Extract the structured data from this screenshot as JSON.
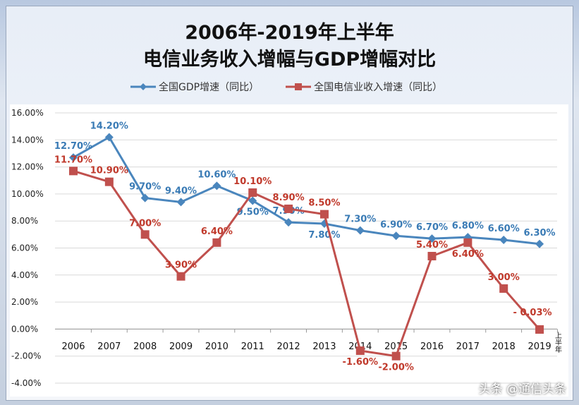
{
  "chart_data": {
    "type": "line",
    "title": "2006年-2019年上半年",
    "subtitle": "电信业务收入增幅与GDP增幅对比",
    "categories": [
      "2006",
      "2007",
      "2008",
      "2009",
      "2010",
      "2011",
      "2012",
      "2013",
      "2014",
      "2015",
      "2016",
      "2017",
      "2018",
      "2019"
    ],
    "category_note": "上半年",
    "yticks": [
      "16.00%",
      "14.00%",
      "12.00%",
      "10.00%",
      "8.00%",
      "6.00%",
      "4.00%",
      "2.00%",
      "0.00%",
      "-2.00%",
      "-4.00%"
    ],
    "ylim": [
      -4,
      16
    ],
    "grid": true,
    "legend": "top",
    "series": [
      {
        "name": "全国GDP增速（同比）",
        "color": "#4a86bd",
        "marker": "diamond",
        "values": [
          12.7,
          14.2,
          9.7,
          9.4,
          10.6,
          9.5,
          7.9,
          7.8,
          7.3,
          6.9,
          6.7,
          6.8,
          6.6,
          6.3
        ],
        "labels": [
          "12.70%",
          "14.20%",
          "9.70%",
          "9.40%",
          "10.60%",
          "9.50%",
          "7.90%",
          "7.80%",
          "7.30%",
          "6.90%",
          "6.70%",
          "6.80%",
          "6.60%",
          "6.30%"
        ]
      },
      {
        "name": "全国电信业收入增速（同比）",
        "color": "#c0504d",
        "marker": "square",
        "values": [
          11.7,
          10.9,
          7.0,
          3.9,
          6.4,
          10.1,
          8.9,
          8.5,
          -1.6,
          -2.0,
          5.4,
          6.4,
          3.0,
          -0.03
        ],
        "labels": [
          "11.70%",
          "10.90%",
          "7.00%",
          "3.90%",
          "6.40%",
          "10.10%",
          "8.90%",
          "8.50%",
          "-1.60%",
          "-2.00%",
          "5.40%",
          "6.40%",
          "3.00%",
          "- 0.03%"
        ]
      }
    ]
  },
  "watermark": "头条 @通信头条"
}
